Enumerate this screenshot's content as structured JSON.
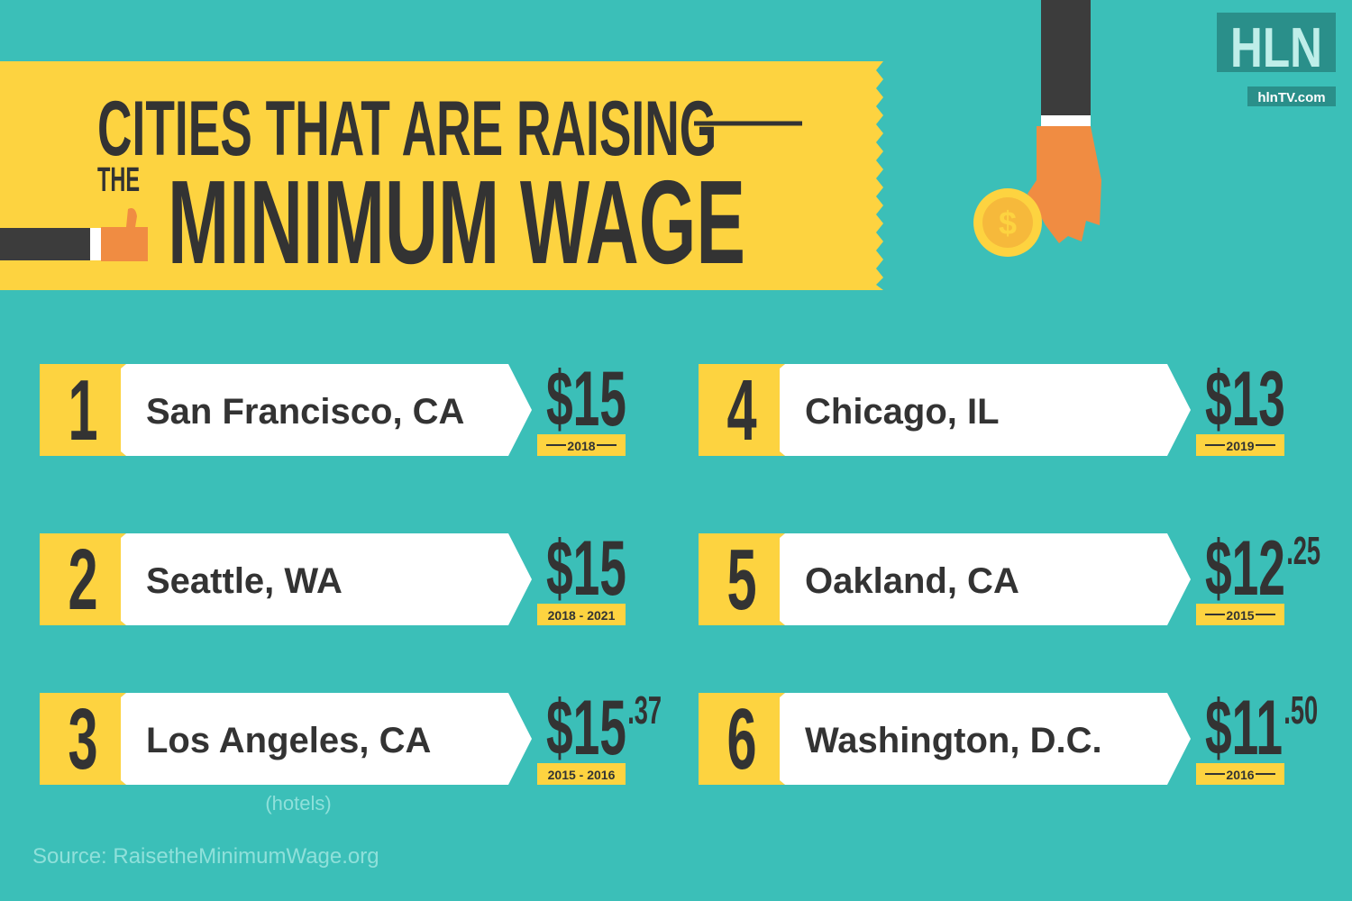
{
  "header": {
    "title_line1": "CITIES THAT ARE RAISING",
    "title_prefix": "THE",
    "title_line2": "MINIMUM WAGE"
  },
  "logo": {
    "name": "HLN",
    "url": "hlnTV.com"
  },
  "cities": [
    {
      "rank": "1",
      "city": "San  Francisco, CA",
      "wage": "$15",
      "year": "2018"
    },
    {
      "rank": "2",
      "city": "Seattle, WA",
      "wage": "$15",
      "year": "2018 - 2021"
    },
    {
      "rank": "3",
      "city": "Los Angeles, CA",
      "wage": "$15",
      "cents": ".37",
      "year": "2015 - 2016",
      "note": "(hotels)"
    },
    {
      "rank": "4",
      "city": "Chicago, IL",
      "wage": "$13",
      "year": "2019"
    },
    {
      "rank": "5",
      "city": "Oakland, CA",
      "wage": "$12",
      "cents": ".25",
      "year": "2015"
    },
    {
      "rank": "6",
      "city": "Washington, D.C.",
      "wage": "$11",
      "cents": ".50",
      "year": "2016"
    }
  ],
  "source": "Source: RaisetheMinimumWage.org"
}
